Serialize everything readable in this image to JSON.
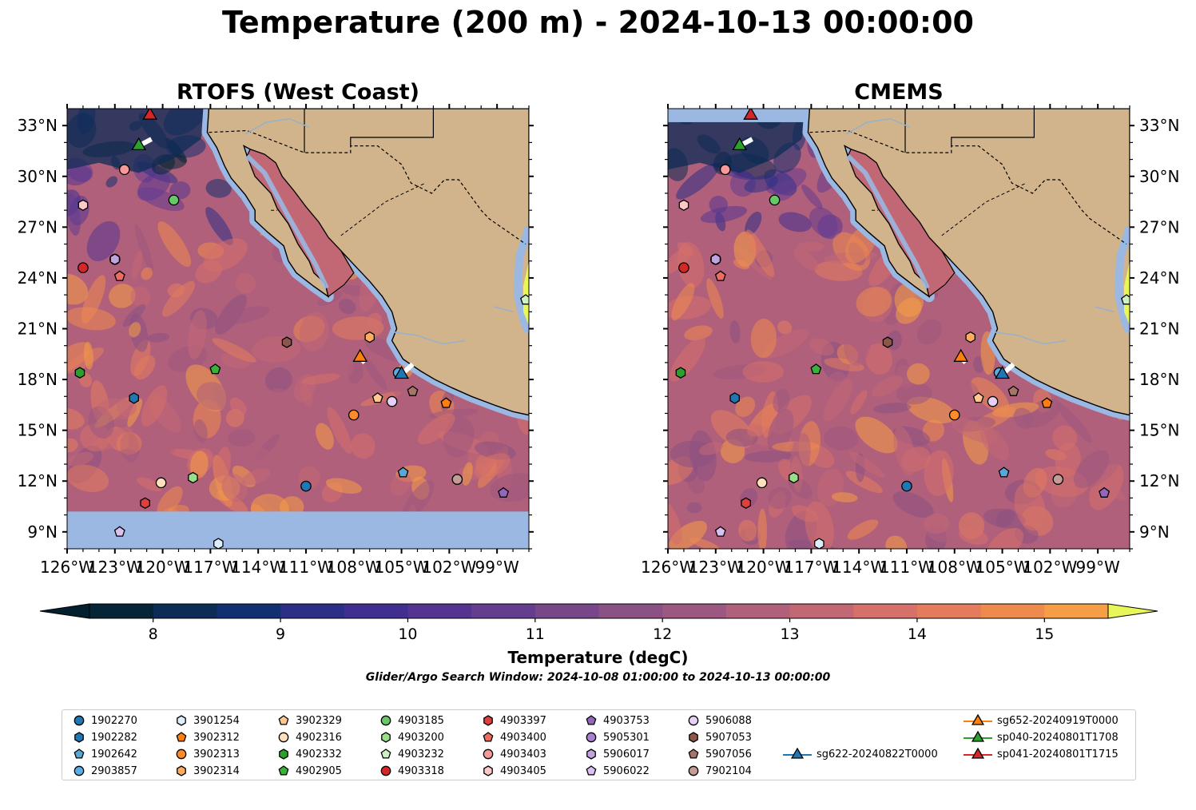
{
  "title": "Temperature (200 m) - 2024-10-13 00:00:00",
  "panels": [
    {
      "id": "rtofs",
      "title": "RTOFS (West Coast)"
    },
    {
      "id": "cmems",
      "title": "CMEMS"
    }
  ],
  "map_extent": {
    "lon_min": -126.0,
    "lon_max": -97.0,
    "lat_min": 8.0,
    "lat_max": 34.0
  },
  "axes": {
    "lon_ticks": [
      -126,
      -123,
      -120,
      -117,
      -114,
      -111,
      -108,
      -105,
      -102,
      -99
    ],
    "lon_labels": [
      "126°W",
      "123°W",
      "120°W",
      "117°W",
      "114°W",
      "111°W",
      "108°W",
      "105°W",
      "102°W",
      "99°W"
    ],
    "lat_ticks": [
      33,
      30,
      27,
      24,
      21,
      18,
      15,
      12,
      9
    ],
    "lat_labels": [
      "33°N",
      "30°N",
      "27°N",
      "24°N",
      "21°N",
      "18°N",
      "15°N",
      "12°N",
      "9°N"
    ]
  },
  "colorbar": {
    "label": "Temperature (degC)",
    "min": 7.5,
    "max": 15.5,
    "step": 0.5,
    "extend": "both",
    "ticks": [
      8,
      9,
      10,
      11,
      12,
      13,
      14,
      15
    ],
    "tick_labels": [
      "8",
      "9",
      "10",
      "11",
      "12",
      "13",
      "14",
      "15"
    ],
    "colors": [
      "#052436",
      "#0c2b55",
      "#122f71",
      "#2b2f86",
      "#412f8f",
      "#553491",
      "#653d8f",
      "#774789",
      "#8b5084",
      "#9c5880",
      "#b1607b",
      "#c26774",
      "#d5706a",
      "#e47b5c",
      "#ef8a4f",
      "#f69e45",
      "#f7b445",
      "#f2ce49",
      "#e6ec56"
    ],
    "under_color": "#041f2e",
    "over_color": "#e8f65a"
  },
  "land_color": "#d2b48c",
  "shelf_color": "#9ab8e2",
  "search_window": "Glider/Argo Search Window: 2024-10-08 01:00:00 to 2024-10-13 00:00:00",
  "markers": [
    {
      "id": "1902270",
      "marker": "circle",
      "color": "#1f77b4",
      "lon": -111.0,
      "lat": 11.7
    },
    {
      "id": "1902282",
      "marker": "hexagon",
      "color": "#1f77b4",
      "lon": -121.8,
      "lat": 16.9
    },
    {
      "id": "1902642",
      "marker": "pentagon",
      "color": "#5aa6d6",
      "lon": -104.9,
      "lat": 12.5
    },
    {
      "id": "2903857",
      "marker": "circle",
      "color": "#5aaee6",
      "lon": -105.2,
      "lat": 18.4
    },
    {
      "id": "3901254",
      "marker": "hexagon",
      "color": "#dceefb",
      "lon": -116.5,
      "lat": 8.3
    },
    {
      "id": "3902312",
      "marker": "pentagon",
      "color": "#ff7f0e",
      "lon": -102.2,
      "lat": 16.6
    },
    {
      "id": "3902313",
      "marker": "circle",
      "color": "#ff8c28",
      "lon": -108.0,
      "lat": 15.9
    },
    {
      "id": "3902314",
      "marker": "hexagon",
      "color": "#ffac60",
      "lon": -107.0,
      "lat": 20.5
    },
    {
      "id": "3902329",
      "marker": "pentagon",
      "color": "#ffc891",
      "lon": -106.5,
      "lat": 16.9
    },
    {
      "id": "4902316",
      "marker": "circle",
      "color": "#ffe0bd",
      "lon": -120.1,
      "lat": 11.9
    },
    {
      "id": "4902332",
      "marker": "hexagon",
      "color": "#2ca02c",
      "lon": -125.2,
      "lat": 18.4
    },
    {
      "id": "4902905",
      "marker": "pentagon",
      "color": "#39b239",
      "lon": -116.7,
      "lat": 18.6
    },
    {
      "id": "4903185",
      "marker": "circle",
      "color": "#68c868",
      "lon": -119.3,
      "lat": 28.6
    },
    {
      "id": "4903200",
      "marker": "hexagon",
      "color": "#98df8a",
      "lon": -118.1,
      "lat": 12.2
    },
    {
      "id": "4903232",
      "marker": "pentagon",
      "color": "#ccf2c4",
      "lon": -97.2,
      "lat": 22.7
    },
    {
      "id": "4903318",
      "marker": "circle",
      "color": "#d62728",
      "lon": -125.0,
      "lat": 24.6
    },
    {
      "id": "4903397",
      "marker": "hexagon",
      "color": "#de3f3f",
      "lon": -121.1,
      "lat": 10.7
    },
    {
      "id": "4903400",
      "marker": "pentagon",
      "color": "#ec6b62",
      "lon": -122.7,
      "lat": 24.1
    },
    {
      "id": "4903403",
      "marker": "circle",
      "color": "#f59a98",
      "lon": -122.4,
      "lat": 30.4
    },
    {
      "id": "4903405",
      "marker": "hexagon",
      "color": "#fcc8c8",
      "lon": -125.0,
      "lat": 28.3
    },
    {
      "id": "4903753",
      "marker": "pentagon",
      "color": "#9467bd",
      "lon": -98.6,
      "lat": 11.3
    },
    {
      "id": "5905301",
      "marker": "circle",
      "color": "#a981cf",
      "lon": -123.0,
      "lat": 25.1
    },
    {
      "id": "5906017",
      "marker": "hexagon",
      "color": "#c2a3e0",
      "lon": -123.0,
      "lat": 25.1
    },
    {
      "id": "5906022",
      "marker": "pentagon",
      "color": "#d9c2f0",
      "lon": -122.7,
      "lat": 9.0
    },
    {
      "id": "5906088",
      "marker": "circle",
      "color": "#e6d0f7",
      "lon": -105.6,
      "lat": 16.7
    },
    {
      "id": "5907053",
      "marker": "hexagon",
      "color": "#8c564b",
      "lon": -112.2,
      "lat": 20.2
    },
    {
      "id": "5907056",
      "marker": "pentagon",
      "color": "#a7746a",
      "lon": -104.3,
      "lat": 17.3
    },
    {
      "id": "7902104",
      "marker": "circle",
      "color": "#c49c94",
      "lon": -101.5,
      "lat": 12.1
    }
  ],
  "gliders": [
    {
      "id": "sg622-20240822T0000",
      "color": "#1f77b4",
      "lon": -105.0,
      "lat": 18.3,
      "track": [
        [
          -105.0,
          18.3
        ],
        [
          -104.3,
          18.9
        ]
      ]
    },
    {
      "id": "sg652-20240919T0000",
      "color": "#ff7f0e",
      "lon": -107.6,
      "lat": 19.3,
      "track": [
        [
          -107.6,
          19.3
        ],
        [
          -107.3,
          19.0
        ]
      ]
    },
    {
      "id": "sp040-20240801T1708",
      "color": "#2ca02c",
      "lon": -121.5,
      "lat": 31.8,
      "track": [
        [
          -121.5,
          31.8
        ],
        [
          -120.7,
          32.2
        ]
      ]
    },
    {
      "id": "sp041-20240801T1715",
      "color": "#d62728",
      "lon": -120.8,
      "lat": 33.6,
      "track": []
    }
  ]
}
